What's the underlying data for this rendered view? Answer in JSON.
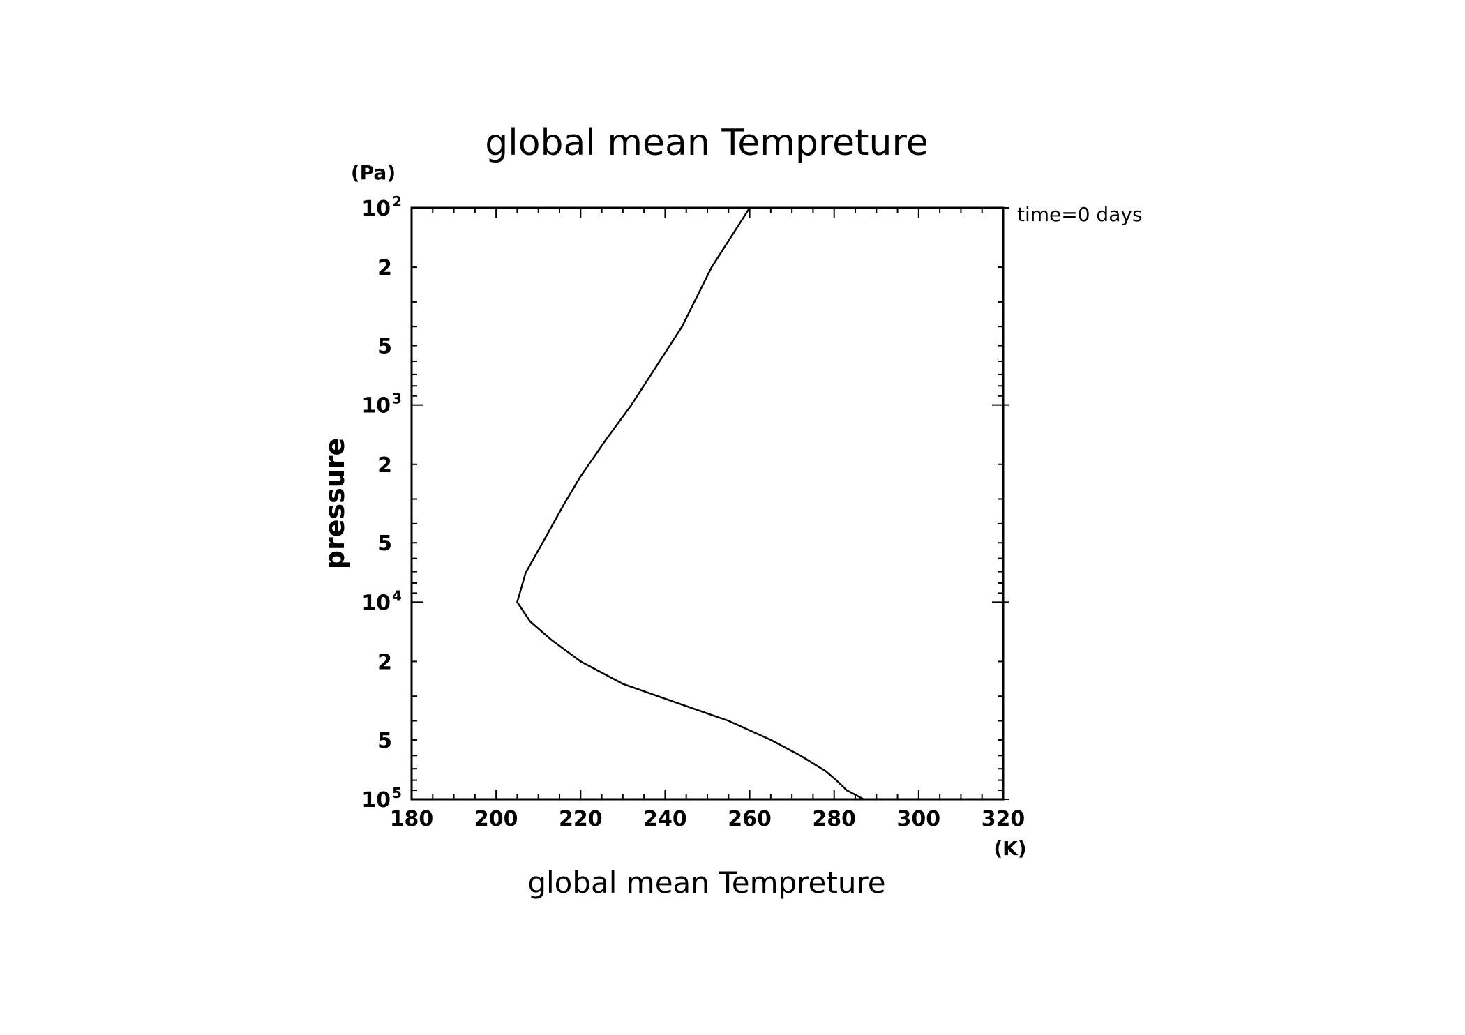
{
  "chart_data": {
    "type": "line",
    "title": "global mean Tempreture",
    "xlabel": "global mean Tempreture",
    "ylabel": "pressure",
    "x_unit": "(K)",
    "y_unit": "(Pa)",
    "annotation": "time=0 days",
    "xlim": [
      180,
      320
    ],
    "ylim": [
      100,
      100000
    ],
    "y_scale": "log",
    "y_inverted": true,
    "grid": false,
    "x_ticks": [
      180,
      200,
      220,
      240,
      260,
      280,
      300,
      320
    ],
    "y_major_ticks": [
      {
        "value": 100,
        "base": "10",
        "exp": "2"
      },
      {
        "value": 1000,
        "base": "10",
        "exp": "3"
      },
      {
        "value": 10000,
        "base": "10",
        "exp": "4"
      },
      {
        "value": 100000,
        "base": "10",
        "exp": "5"
      }
    ],
    "y_minor_labels": [
      {
        "value": 200,
        "label": "2"
      },
      {
        "value": 500,
        "label": "5"
      },
      {
        "value": 2000,
        "label": "2"
      },
      {
        "value": 5000,
        "label": "5"
      },
      {
        "value": 20000,
        "label": "2"
      },
      {
        "value": 50000,
        "label": "5"
      }
    ],
    "series": [
      {
        "points": [
          {
            "x": 260.0,
            "y": 100
          },
          {
            "x": 251.0,
            "y": 200
          },
          {
            "x": 244.0,
            "y": 400
          },
          {
            "x": 232.0,
            "y": 1000
          },
          {
            "x": 226.0,
            "y": 1500
          },
          {
            "x": 220.0,
            "y": 2300
          },
          {
            "x": 216.0,
            "y": 3200
          },
          {
            "x": 211.0,
            "y": 5000
          },
          {
            "x": 207.0,
            "y": 7100
          },
          {
            "x": 205.0,
            "y": 10000
          },
          {
            "x": 208.0,
            "y": 12500
          },
          {
            "x": 213.0,
            "y": 15500
          },
          {
            "x": 220.0,
            "y": 20000
          },
          {
            "x": 230.0,
            "y": 26000
          },
          {
            "x": 242.0,
            "y": 32000
          },
          {
            "x": 255.0,
            "y": 40000
          },
          {
            "x": 265.0,
            "y": 50000
          },
          {
            "x": 272.0,
            "y": 60000
          },
          {
            "x": 278.0,
            "y": 72000
          },
          {
            "x": 280.5,
            "y": 80000
          },
          {
            "x": 283.0,
            "y": 90000
          },
          {
            "x": 287.0,
            "y": 100000
          }
        ]
      }
    ]
  }
}
